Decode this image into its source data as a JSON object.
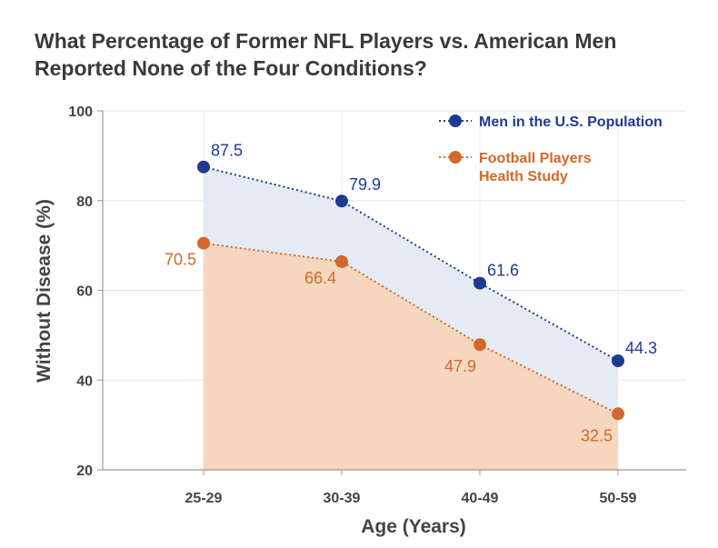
{
  "title_lines": [
    "What Percentage of Former NFL Players vs. American Men",
    "Reported None of the Four Conditions?"
  ],
  "chart_data": {
    "type": "line",
    "title": "What Percentage of Former NFL Players vs. American Men Reported None of the Four Conditions?",
    "xlabel": "Age (Years)",
    "ylabel": "Without Disease (%)",
    "categories": [
      "25-29",
      "30-39",
      "40-49",
      "50-59"
    ],
    "ylim": [
      20,
      100
    ],
    "yticks": [
      20,
      40,
      60,
      80,
      100
    ],
    "grid": true,
    "legend_position": "top-right",
    "series": [
      {
        "name": "Men in the U.S. Population",
        "legend_lines": [
          "Men in the U.S. Population"
        ],
        "values": [
          87.5,
          79.9,
          61.6,
          44.3
        ],
        "labels": [
          "87.5",
          "79.9",
          "61.6",
          "44.3"
        ],
        "color": "#1f3b8f",
        "fill": "#e4ebf5"
      },
      {
        "name": "Football Players Health Study",
        "legend_lines": [
          "Football Players",
          "Health Study"
        ],
        "values": [
          70.5,
          66.4,
          47.9,
          32.5
        ],
        "labels": [
          "70.5",
          "66.4",
          "47.9",
          "32.5"
        ],
        "color": "#d2692a",
        "fill": "#f5d6be"
      }
    ]
  }
}
